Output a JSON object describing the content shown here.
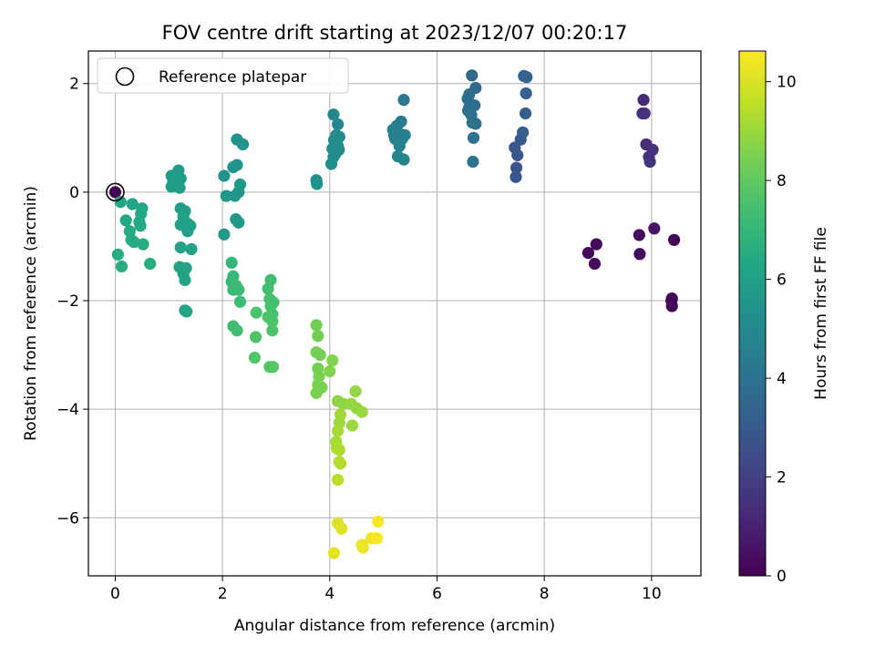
{
  "chart_data": {
    "type": "scatter",
    "title": "FOV centre drift starting at 2023/12/07 00:20:17",
    "xlabel": "Angular distance from reference (arcmin)",
    "ylabel": "Rotation from reference (arcmin)",
    "xlim": [
      -0.5,
      10.92
    ],
    "ylim": [
      -7.07,
      2.6
    ],
    "xticks": [
      0,
      2,
      4,
      6,
      8,
      10
    ],
    "yticks": [
      -6,
      -4,
      -2,
      0,
      2
    ],
    "grid": true,
    "legend": {
      "position": "top-left",
      "entries": [
        "Reference platepar"
      ]
    },
    "reference_point": {
      "x": 0,
      "y": 0
    },
    "colorbar": {
      "label": "Hours from first FF file",
      "colormap": "viridis",
      "range": [
        0,
        10.62
      ],
      "ticks": [
        0,
        2,
        4,
        6,
        8,
        10
      ]
    },
    "points": [
      {
        "x": 0.0,
        "y": 0.0,
        "c": 0.0
      },
      {
        "x": 8.82,
        "y": -1.12,
        "c": 0.25
      },
      {
        "x": 8.97,
        "y": -0.96,
        "c": 0.3
      },
      {
        "x": 8.94,
        "y": -1.32,
        "c": 0.3
      },
      {
        "x": 9.77,
        "y": -0.79,
        "c": 0.35
      },
      {
        "x": 9.78,
        "y": -1.14,
        "c": 0.35
      },
      {
        "x": 10.05,
        "y": -0.67,
        "c": 0.6
      },
      {
        "x": 10.42,
        "y": -0.88,
        "c": 0.1
      },
      {
        "x": 10.38,
        "y": -1.96,
        "c": 0.1
      },
      {
        "x": 10.38,
        "y": -2.1,
        "c": 0.1
      },
      {
        "x": 10.37,
        "y": -2.0,
        "c": 0.1
      },
      {
        "x": 9.85,
        "y": 1.7,
        "c": 1.3
      },
      {
        "x": 9.83,
        "y": 1.45,
        "c": 1.5
      },
      {
        "x": 9.87,
        "y": 1.45,
        "c": 1.5
      },
      {
        "x": 9.9,
        "y": 0.88,
        "c": 1.4
      },
      {
        "x": 9.95,
        "y": 0.65,
        "c": 1.5
      },
      {
        "x": 9.97,
        "y": 0.56,
        "c": 1.6
      },
      {
        "x": 10.02,
        "y": 0.78,
        "c": 1.5
      },
      {
        "x": 7.47,
        "y": 0.28,
        "c": 2.8
      },
      {
        "x": 7.48,
        "y": 0.45,
        "c": 2.8
      },
      {
        "x": 7.5,
        "y": 0.68,
        "c": 2.9
      },
      {
        "x": 7.45,
        "y": 0.82,
        "c": 2.9
      },
      {
        "x": 7.56,
        "y": 0.97,
        "c": 3.0
      },
      {
        "x": 7.6,
        "y": 1.1,
        "c": 3.1
      },
      {
        "x": 7.65,
        "y": 1.45,
        "c": 3.2
      },
      {
        "x": 7.66,
        "y": 1.82,
        "c": 3.3
      },
      {
        "x": 7.62,
        "y": 2.14,
        "c": 3.4
      },
      {
        "x": 7.67,
        "y": 2.12,
        "c": 3.4
      },
      {
        "x": 6.65,
        "y": 2.15,
        "c": 3.6
      },
      {
        "x": 6.72,
        "y": 1.92,
        "c": 3.7
      },
      {
        "x": 6.6,
        "y": 1.8,
        "c": 3.7
      },
      {
        "x": 6.57,
        "y": 1.72,
        "c": 3.8
      },
      {
        "x": 6.6,
        "y": 1.56,
        "c": 3.8
      },
      {
        "x": 6.58,
        "y": 1.5,
        "c": 3.8
      },
      {
        "x": 6.64,
        "y": 1.42,
        "c": 3.9
      },
      {
        "x": 6.66,
        "y": 1.28,
        "c": 3.9
      },
      {
        "x": 6.72,
        "y": 1.26,
        "c": 3.9
      },
      {
        "x": 6.68,
        "y": 1.0,
        "c": 4.0
      },
      {
        "x": 6.67,
        "y": 0.56,
        "c": 4.0
      },
      {
        "x": 6.7,
        "y": 1.6,
        "c": 3.8
      },
      {
        "x": 5.38,
        "y": 1.7,
        "c": 4.3
      },
      {
        "x": 5.25,
        "y": 1.22,
        "c": 4.4
      },
      {
        "x": 5.33,
        "y": 1.3,
        "c": 4.4
      },
      {
        "x": 5.18,
        "y": 1.15,
        "c": 4.5
      },
      {
        "x": 5.28,
        "y": 1.1,
        "c": 4.5
      },
      {
        "x": 5.22,
        "y": 0.98,
        "c": 4.6
      },
      {
        "x": 5.35,
        "y": 0.98,
        "c": 4.6
      },
      {
        "x": 5.3,
        "y": 0.85,
        "c": 4.7
      },
      {
        "x": 5.27,
        "y": 0.66,
        "c": 4.7
      },
      {
        "x": 5.38,
        "y": 0.6,
        "c": 4.8
      },
      {
        "x": 5.4,
        "y": 1.05,
        "c": 4.6
      },
      {
        "x": 5.2,
        "y": 1.05,
        "c": 4.6
      },
      {
        "x": 4.07,
        "y": 1.43,
        "c": 4.9
      },
      {
        "x": 4.15,
        "y": 1.25,
        "c": 4.9
      },
      {
        "x": 4.12,
        "y": 1.05,
        "c": 5.0
      },
      {
        "x": 4.18,
        "y": 1.02,
        "c": 5.0
      },
      {
        "x": 4.08,
        "y": 0.96,
        "c": 5.0
      },
      {
        "x": 4.05,
        "y": 0.8,
        "c": 5.1
      },
      {
        "x": 4.17,
        "y": 0.78,
        "c": 5.1
      },
      {
        "x": 4.1,
        "y": 0.7,
        "c": 5.1
      },
      {
        "x": 4.07,
        "y": 0.65,
        "c": 5.2
      },
      {
        "x": 4.03,
        "y": 0.52,
        "c": 5.2
      },
      {
        "x": 4.15,
        "y": 0.85,
        "c": 5.1
      },
      {
        "x": 3.75,
        "y": 0.22,
        "c": 5.2
      },
      {
        "x": 3.76,
        "y": 0.15,
        "c": 5.3
      },
      {
        "x": 2.27,
        "y": 0.97,
        "c": 5.4
      },
      {
        "x": 2.38,
        "y": 0.88,
        "c": 5.4
      },
      {
        "x": 2.27,
        "y": 0.5,
        "c": 5.5
      },
      {
        "x": 2.2,
        "y": 0.46,
        "c": 5.5
      },
      {
        "x": 2.03,
        "y": 0.3,
        "c": 5.5
      },
      {
        "x": 2.33,
        "y": 0.14,
        "c": 5.6
      },
      {
        "x": 2.3,
        "y": 0.0,
        "c": 5.6
      },
      {
        "x": 2.23,
        "y": -0.07,
        "c": 5.6
      },
      {
        "x": 2.07,
        "y": -0.07,
        "c": 5.6
      },
      {
        "x": 2.25,
        "y": -0.5,
        "c": 5.7
      },
      {
        "x": 2.3,
        "y": -0.56,
        "c": 5.7
      },
      {
        "x": 2.03,
        "y": -0.78,
        "c": 5.7
      },
      {
        "x": 1.18,
        "y": 0.4,
        "c": 5.8
      },
      {
        "x": 1.05,
        "y": 0.3,
        "c": 5.8
      },
      {
        "x": 1.12,
        "y": 0.26,
        "c": 5.8
      },
      {
        "x": 1.22,
        "y": 0.25,
        "c": 5.8
      },
      {
        "x": 1.08,
        "y": 0.18,
        "c": 5.9
      },
      {
        "x": 1.15,
        "y": 0.12,
        "c": 5.9
      },
      {
        "x": 1.2,
        "y": 0.08,
        "c": 5.9
      },
      {
        "x": 1.05,
        "y": 0.1,
        "c": 5.9
      },
      {
        "x": 1.22,
        "y": -0.3,
        "c": 5.9
      },
      {
        "x": 1.3,
        "y": -0.35,
        "c": 5.9
      },
      {
        "x": 1.27,
        "y": -0.45,
        "c": 6.0
      },
      {
        "x": 1.35,
        "y": -0.58,
        "c": 6.0
      },
      {
        "x": 1.22,
        "y": -0.6,
        "c": 6.0
      },
      {
        "x": 1.4,
        "y": -0.62,
        "c": 6.0
      },
      {
        "x": 1.35,
        "y": -0.72,
        "c": 6.0
      },
      {
        "x": 1.22,
        "y": -1.02,
        "c": 6.1
      },
      {
        "x": 1.42,
        "y": -1.05,
        "c": 6.1
      },
      {
        "x": 1.2,
        "y": -1.38,
        "c": 6.1
      },
      {
        "x": 1.32,
        "y": -1.4,
        "c": 6.2
      },
      {
        "x": 1.27,
        "y": -1.5,
        "c": 6.2
      },
      {
        "x": 1.3,
        "y": -1.62,
        "c": 6.2
      },
      {
        "x": 1.3,
        "y": -2.18,
        "c": 6.2
      },
      {
        "x": 1.33,
        "y": -2.2,
        "c": 6.2
      },
      {
        "x": 0.1,
        "y": -0.18,
        "c": 6.3
      },
      {
        "x": 0.32,
        "y": -0.22,
        "c": 6.3
      },
      {
        "x": 0.5,
        "y": -0.3,
        "c": 6.3
      },
      {
        "x": 0.48,
        "y": -0.4,
        "c": 6.4
      },
      {
        "x": 0.2,
        "y": -0.52,
        "c": 6.4
      },
      {
        "x": 0.45,
        "y": -0.55,
        "c": 6.4
      },
      {
        "x": 0.47,
        "y": -0.62,
        "c": 6.4
      },
      {
        "x": 0.27,
        "y": -0.72,
        "c": 6.5
      },
      {
        "x": 0.3,
        "y": -0.88,
        "c": 6.5
      },
      {
        "x": 0.35,
        "y": -0.92,
        "c": 6.5
      },
      {
        "x": 0.52,
        "y": -0.96,
        "c": 6.5
      },
      {
        "x": 0.05,
        "y": -1.15,
        "c": 6.6
      },
      {
        "x": 0.65,
        "y": -1.32,
        "c": 6.6
      },
      {
        "x": 0.12,
        "y": -1.37,
        "c": 6.6
      },
      {
        "x": 2.17,
        "y": -1.3,
        "c": 7.0
      },
      {
        "x": 2.2,
        "y": -1.55,
        "c": 7.1
      },
      {
        "x": 2.17,
        "y": -1.65,
        "c": 7.1
      },
      {
        "x": 2.25,
        "y": -1.72,
        "c": 7.2
      },
      {
        "x": 2.2,
        "y": -1.8,
        "c": 7.2
      },
      {
        "x": 2.3,
        "y": -1.8,
        "c": 7.2
      },
      {
        "x": 2.33,
        "y": -2.02,
        "c": 7.2
      },
      {
        "x": 2.2,
        "y": -2.47,
        "c": 7.3
      },
      {
        "x": 2.27,
        "y": -2.55,
        "c": 7.3
      },
      {
        "x": 2.9,
        "y": -1.62,
        "c": 7.4
      },
      {
        "x": 2.85,
        "y": -1.78,
        "c": 7.4
      },
      {
        "x": 2.88,
        "y": -1.97,
        "c": 7.5
      },
      {
        "x": 2.95,
        "y": -2.03,
        "c": 7.5
      },
      {
        "x": 2.9,
        "y": -2.1,
        "c": 7.5
      },
      {
        "x": 2.93,
        "y": -2.25,
        "c": 7.5
      },
      {
        "x": 2.85,
        "y": -2.3,
        "c": 7.6
      },
      {
        "x": 2.93,
        "y": -2.38,
        "c": 7.6
      },
      {
        "x": 2.93,
        "y": -2.55,
        "c": 7.6
      },
      {
        "x": 2.63,
        "y": -2.22,
        "c": 7.6
      },
      {
        "x": 2.62,
        "y": -2.67,
        "c": 7.7
      },
      {
        "x": 2.6,
        "y": -3.05,
        "c": 7.7
      },
      {
        "x": 2.88,
        "y": -3.22,
        "c": 7.8
      },
      {
        "x": 2.94,
        "y": -3.22,
        "c": 7.8
      },
      {
        "x": 3.75,
        "y": -2.45,
        "c": 8.3
      },
      {
        "x": 3.78,
        "y": -2.65,
        "c": 8.3
      },
      {
        "x": 3.75,
        "y": -2.95,
        "c": 8.4
      },
      {
        "x": 3.82,
        "y": -3.0,
        "c": 8.4
      },
      {
        "x": 3.78,
        "y": -3.25,
        "c": 8.4
      },
      {
        "x": 3.8,
        "y": -3.4,
        "c": 8.5
      },
      {
        "x": 3.78,
        "y": -3.55,
        "c": 8.5
      },
      {
        "x": 3.85,
        "y": -3.6,
        "c": 8.5
      },
      {
        "x": 3.75,
        "y": -3.7,
        "c": 8.5
      },
      {
        "x": 4.05,
        "y": -3.1,
        "c": 8.6
      },
      {
        "x": 4.0,
        "y": -3.3,
        "c": 8.6
      },
      {
        "x": 4.15,
        "y": -3.85,
        "c": 8.8
      },
      {
        "x": 4.25,
        "y": -3.9,
        "c": 8.8
      },
      {
        "x": 4.4,
        "y": -3.9,
        "c": 8.9
      },
      {
        "x": 4.48,
        "y": -3.67,
        "c": 8.9
      },
      {
        "x": 4.5,
        "y": -3.98,
        "c": 8.9
      },
      {
        "x": 4.6,
        "y": -4.05,
        "c": 9.0
      },
      {
        "x": 4.42,
        "y": -4.3,
        "c": 9.0
      },
      {
        "x": 4.2,
        "y": -4.1,
        "c": 9.1
      },
      {
        "x": 4.18,
        "y": -4.25,
        "c": 9.1
      },
      {
        "x": 4.15,
        "y": -4.4,
        "c": 9.2
      },
      {
        "x": 4.12,
        "y": -4.6,
        "c": 9.2
      },
      {
        "x": 4.13,
        "y": -4.72,
        "c": 9.3
      },
      {
        "x": 4.18,
        "y": -4.75,
        "c": 9.3
      },
      {
        "x": 4.18,
        "y": -4.97,
        "c": 9.4
      },
      {
        "x": 4.2,
        "y": -5.0,
        "c": 9.4
      },
      {
        "x": 4.15,
        "y": -5.3,
        "c": 9.5
      },
      {
        "x": 4.15,
        "y": -6.1,
        "c": 10.0
      },
      {
        "x": 4.22,
        "y": -6.2,
        "c": 10.1
      },
      {
        "x": 4.08,
        "y": -6.65,
        "c": 10.2
      },
      {
        "x": 4.6,
        "y": -6.5,
        "c": 10.3
      },
      {
        "x": 4.62,
        "y": -6.55,
        "c": 10.3
      },
      {
        "x": 4.78,
        "y": -6.38,
        "c": 10.4
      },
      {
        "x": 4.88,
        "y": -6.38,
        "c": 10.5
      },
      {
        "x": 4.9,
        "y": -6.07,
        "c": 10.5
      }
    ]
  }
}
